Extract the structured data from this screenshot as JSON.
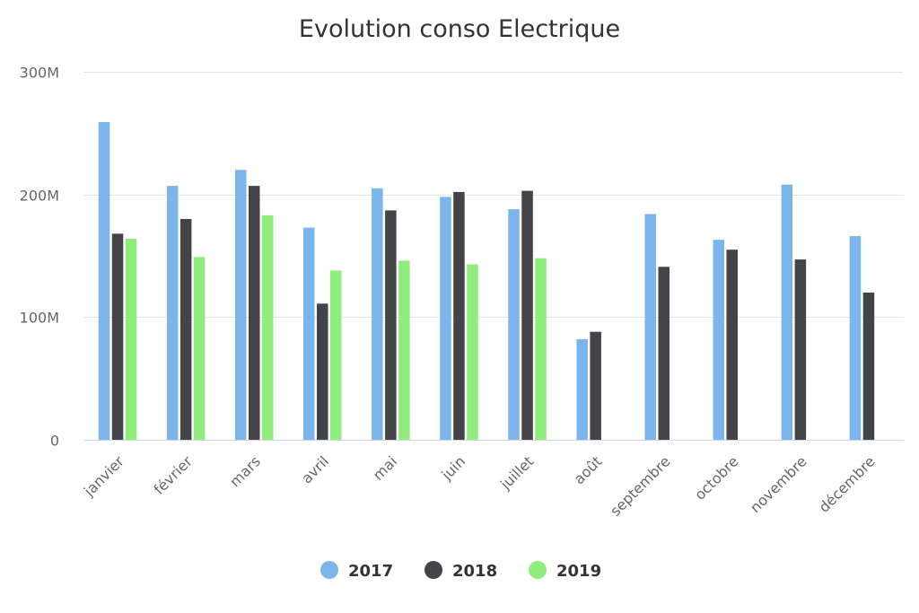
{
  "chart_data": {
    "type": "bar",
    "title": "Evolution conso Electrique",
    "xlabel": "",
    "ylabel": "",
    "ylim": [
      0,
      300000000
    ],
    "yticks": [
      {
        "value": 0,
        "label": "0"
      },
      {
        "value": 100000000,
        "label": "100M"
      },
      {
        "value": 200000000,
        "label": "200M"
      },
      {
        "value": 300000000,
        "label": "300M"
      }
    ],
    "grid": true,
    "legend": "bottom-center",
    "categories": [
      "janvier",
      "février",
      "mars",
      "avril",
      "mai",
      "juin",
      "juillet",
      "août",
      "septembre",
      "octobre",
      "novembre",
      "décembre"
    ],
    "series": [
      {
        "name": "2017",
        "color": "#7cb5ec",
        "values": [
          259000000,
          207000000,
          220000000,
          173000000,
          205000000,
          198000000,
          188000000,
          82000000,
          184000000,
          163000000,
          208000000,
          166000000
        ]
      },
      {
        "name": "2018",
        "color": "#434348",
        "values": [
          168000000,
          180000000,
          207000000,
          111000000,
          187000000,
          202000000,
          203000000,
          88000000,
          141000000,
          155000000,
          147000000,
          120000000
        ]
      },
      {
        "name": "2019",
        "color": "#90ed7d",
        "values": [
          164000000,
          149000000,
          183000000,
          138000000,
          146000000,
          143000000,
          148000000,
          null,
          null,
          null,
          null,
          null
        ]
      }
    ]
  }
}
